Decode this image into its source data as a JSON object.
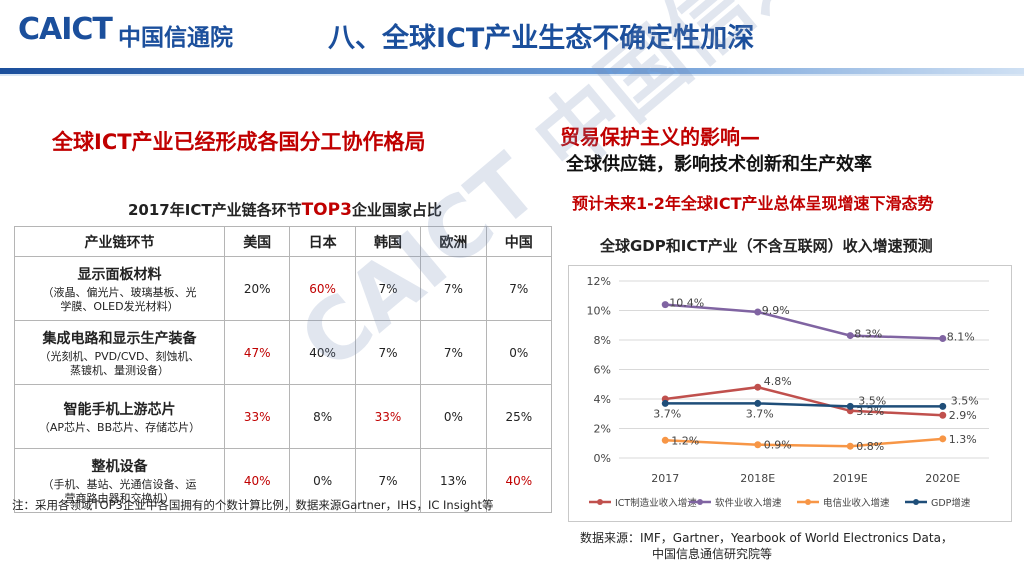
{
  "header": {
    "logo_text": "CAICT",
    "logo_cn": "中国信通院",
    "title": "八、全球ICT产业生态不确定性加深"
  },
  "left": {
    "heading": "全球ICT产业已经形成各国分工协作格局",
    "caption_pre": "2017年ICT产业链各环节",
    "caption_hl": "TOP3",
    "caption_post": "企业国家占比",
    "columns": [
      "产业链环节",
      "美国",
      "日本",
      "韩国",
      "欧洲",
      "中国"
    ],
    "rows": [
      {
        "title": "显示面板材料",
        "sub1": "（液晶、偏光片、玻璃基板、光",
        "sub2": "学膜、OLED发光材料）",
        "values": [
          "20%",
          "60%",
          "7%",
          "7%",
          "7%"
        ],
        "highlight": [
          false,
          true,
          false,
          false,
          false
        ]
      },
      {
        "title": "集成电路和显示生产装备",
        "sub1": "（光刻机、PVD/CVD、刻蚀机、",
        "sub2": "蒸镀机、量测设备）",
        "values": [
          "47%",
          "40%",
          "7%",
          "7%",
          "0%"
        ],
        "highlight": [
          true,
          false,
          false,
          false,
          false
        ]
      },
      {
        "title": "智能手机上游芯片",
        "sub1": "（AP芯片、BB芯片、存储芯片）",
        "sub2": "",
        "values": [
          "33%",
          "8%",
          "33%",
          "0%",
          "25%"
        ],
        "highlight": [
          true,
          false,
          true,
          false,
          false
        ]
      },
      {
        "title": "整机设备",
        "sub1": "（手机、基站、光通信设备、运",
        "sub2": "营商路由器和交换机）",
        "values": [
          "40%",
          "0%",
          "7%",
          "13%",
          "40%"
        ],
        "highlight": [
          true,
          false,
          false,
          false,
          true
        ]
      }
    ],
    "footnote": "注：采用各领域TOP3企业中各国拥有的个数计算比例，数据来源Gartner，IHS，IC Insight等"
  },
  "right": {
    "h1": "贸易保护主义的影响—",
    "h2": "全球供应链，影响技术创新和生产效率",
    "h3": "预计未来1-2年全球ICT产业总体呈现增速下滑态势",
    "chart_title": "全球GDP和ICT产业（不含互联网）收入增速预测",
    "source_l1": "数据来源：IMF，Gartner，Yearbook of World Electronics Data，",
    "source_l2": "中国信息通信研究院等"
  },
  "watermark": "CAICT 中国信通院",
  "colors": {
    "brand_blue": "#1b4f9c",
    "accent_red": "#c00000",
    "ict_mfg": "#c0504d",
    "software": "#8064a2",
    "telecom": "#f79646",
    "gdp": "#1f4e79"
  },
  "chart_data": {
    "type": "line",
    "categories": [
      "2017",
      "2018E",
      "2019E",
      "2020E"
    ],
    "ylim": [
      0,
      12
    ],
    "yticks": [
      "0%",
      "2%",
      "4%",
      "6%",
      "8%",
      "10%",
      "12%"
    ],
    "grid": true,
    "legend_position": "bottom",
    "series": [
      {
        "name": "ICT制造业收入增速",
        "color": "#c0504d",
        "values": [
          4.0,
          4.8,
          3.2,
          2.9
        ],
        "labels": [
          "",
          "4.8%",
          "3.2%",
          "2.9%"
        ]
      },
      {
        "name": "软件业收入增速",
        "color": "#8064a2",
        "values": [
          10.4,
          9.9,
          8.3,
          8.1
        ],
        "labels": [
          "10.4%",
          "9.9%",
          "8.3%",
          "8.1%"
        ]
      },
      {
        "name": "电信业收入增速",
        "color": "#f79646",
        "values": [
          1.2,
          0.9,
          0.8,
          1.3
        ],
        "labels": [
          "1.2%",
          "0.9%",
          "0.8%",
          "1.3%"
        ]
      },
      {
        "name": "GDP增速",
        "color": "#1f4e79",
        "values": [
          3.7,
          3.7,
          3.5,
          3.5
        ],
        "labels": [
          "3.7%",
          "3.7%",
          "3.5%",
          "3.5%"
        ]
      }
    ]
  }
}
